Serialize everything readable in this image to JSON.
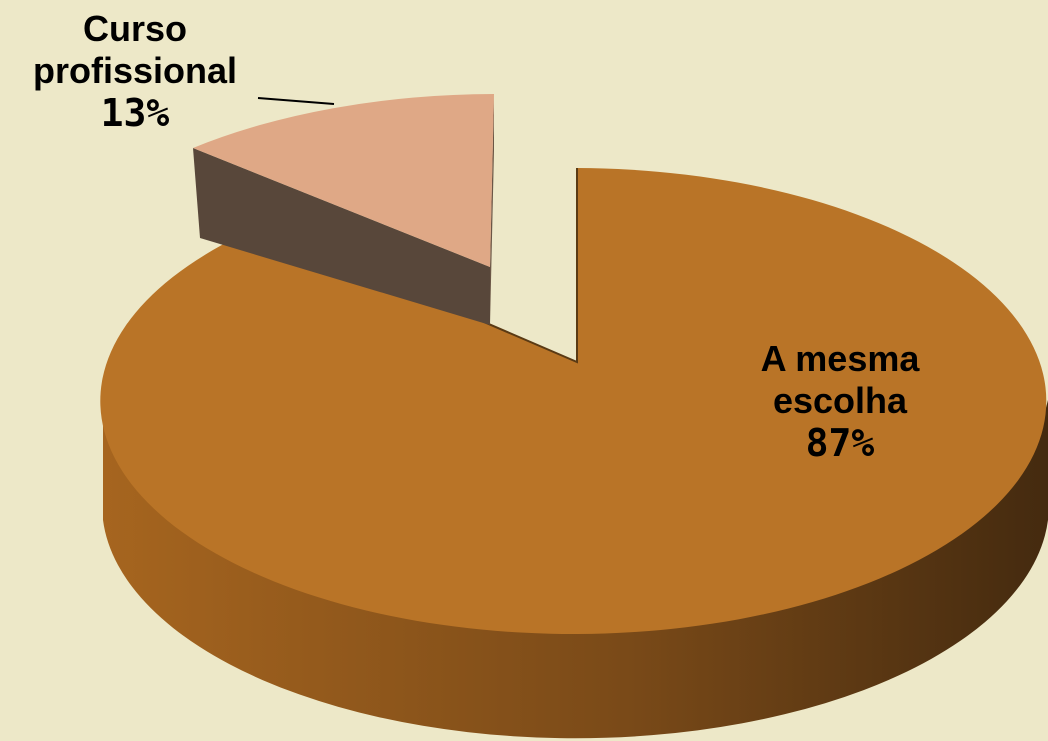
{
  "chart_data": {
    "type": "pie",
    "style": "3d-exploded",
    "slices": [
      {
        "name_lines": [
          "A mesma",
          "escolha"
        ],
        "percent_label": "87%",
        "value": 87,
        "color": "#b97427",
        "side_color": "#8a551c"
      },
      {
        "name_lines": [
          "Curso",
          "profissional"
        ],
        "percent_label": "13%",
        "value": 13,
        "color": "#dfa886",
        "side_color": "#58473a"
      }
    ]
  }
}
